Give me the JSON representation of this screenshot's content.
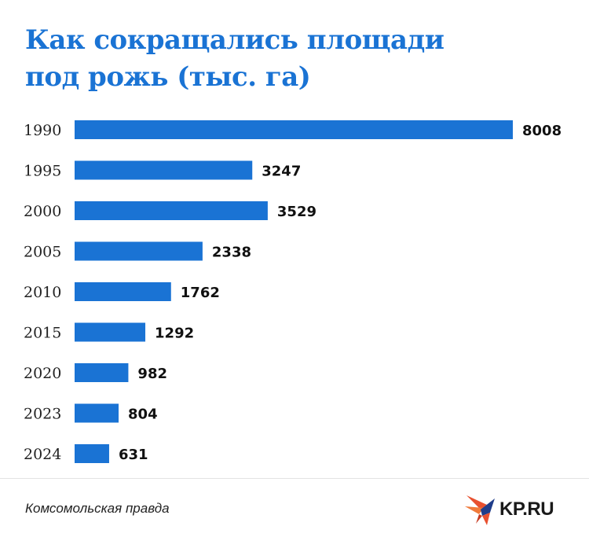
{
  "chart_data": {
    "type": "bar",
    "orientation": "horizontal",
    "title": "Как сокращались площади под рожь (тыс. га)",
    "title_lines": [
      "Как сокращались площади",
      "под рожь (тыс. га)"
    ],
    "categories": [
      "1990",
      "1995",
      "2000",
      "2005",
      "2010",
      "2015",
      "2020",
      "2023",
      "2024"
    ],
    "values": [
      8008,
      3247,
      3529,
      2338,
      1762,
      1292,
      982,
      804,
      631
    ],
    "xlabel": "",
    "ylabel": "",
    "bar_color": "#1a73d4",
    "grid": false,
    "data_labels": true
  },
  "footer": {
    "source": "Комсомольская правда",
    "logo_text": "KP.RU"
  },
  "colors": {
    "accent": "#1a73d4",
    "logo_orange": "#e8502f",
    "logo_dark": "#1f3d8a"
  }
}
